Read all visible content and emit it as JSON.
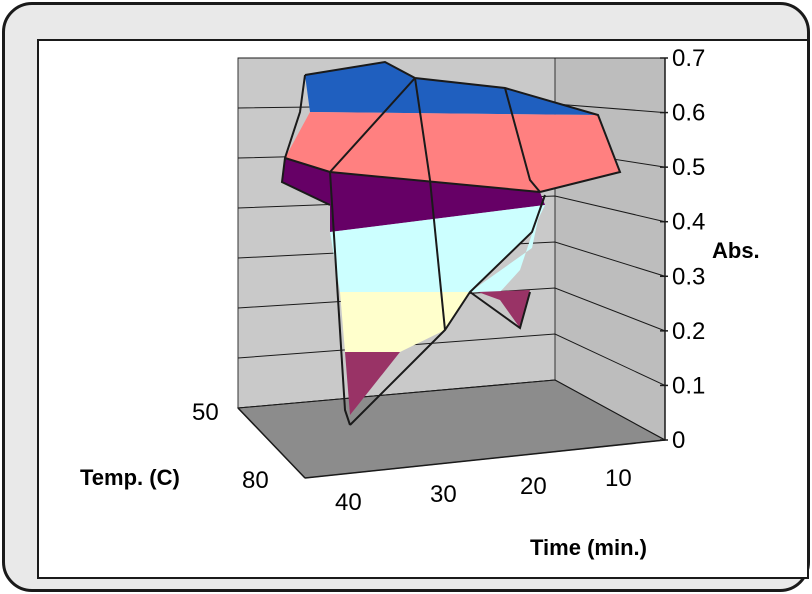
{
  "chart_data": {
    "type": "surface",
    "title": "",
    "x_axis": {
      "label": "Time (min.)",
      "ticks": [
        40,
        30,
        20,
        10
      ]
    },
    "y_axis": {
      "label": "Temp. (C)",
      "ticks": [
        50,
        80
      ]
    },
    "z_axis": {
      "label": "Abs.",
      "min": 0,
      "max": 0.7,
      "ticks": [
        "0.7",
        "0.6",
        "0.5",
        "0.4",
        "0.3",
        "0.2",
        "0.1",
        "0"
      ]
    },
    "grid": true,
    "time": [
      40,
      30,
      20,
      10
    ],
    "temperature": [
      50,
      80
    ],
    "series": [
      {
        "temperature": 50,
        "values": [
          0.67,
          0.68,
          0.66,
          0.59
        ]
      },
      {
        "temperature": 80,
        "values": [
          0.02,
          0.21,
          0.38,
          0.51
        ]
      }
    ],
    "bands": [
      {
        "range": [
          0.0,
          0.1
        ],
        "color": "#993366"
      },
      {
        "range": [
          0.1,
          0.2
        ],
        "color": "#993366"
      },
      {
        "range": [
          0.2,
          0.3
        ],
        "color": "#ffffcc"
      },
      {
        "range": [
          0.3,
          0.4
        ],
        "color": "#ccffff"
      },
      {
        "range": [
          0.4,
          0.5
        ],
        "color": "#660066"
      },
      {
        "range": [
          0.5,
          0.6
        ],
        "color": "#ff8080"
      },
      {
        "range": [
          0.6,
          0.7
        ],
        "color": "#1f5fbf"
      }
    ],
    "wall_color": "#c0c0c0",
    "floor_color": "#808080"
  }
}
